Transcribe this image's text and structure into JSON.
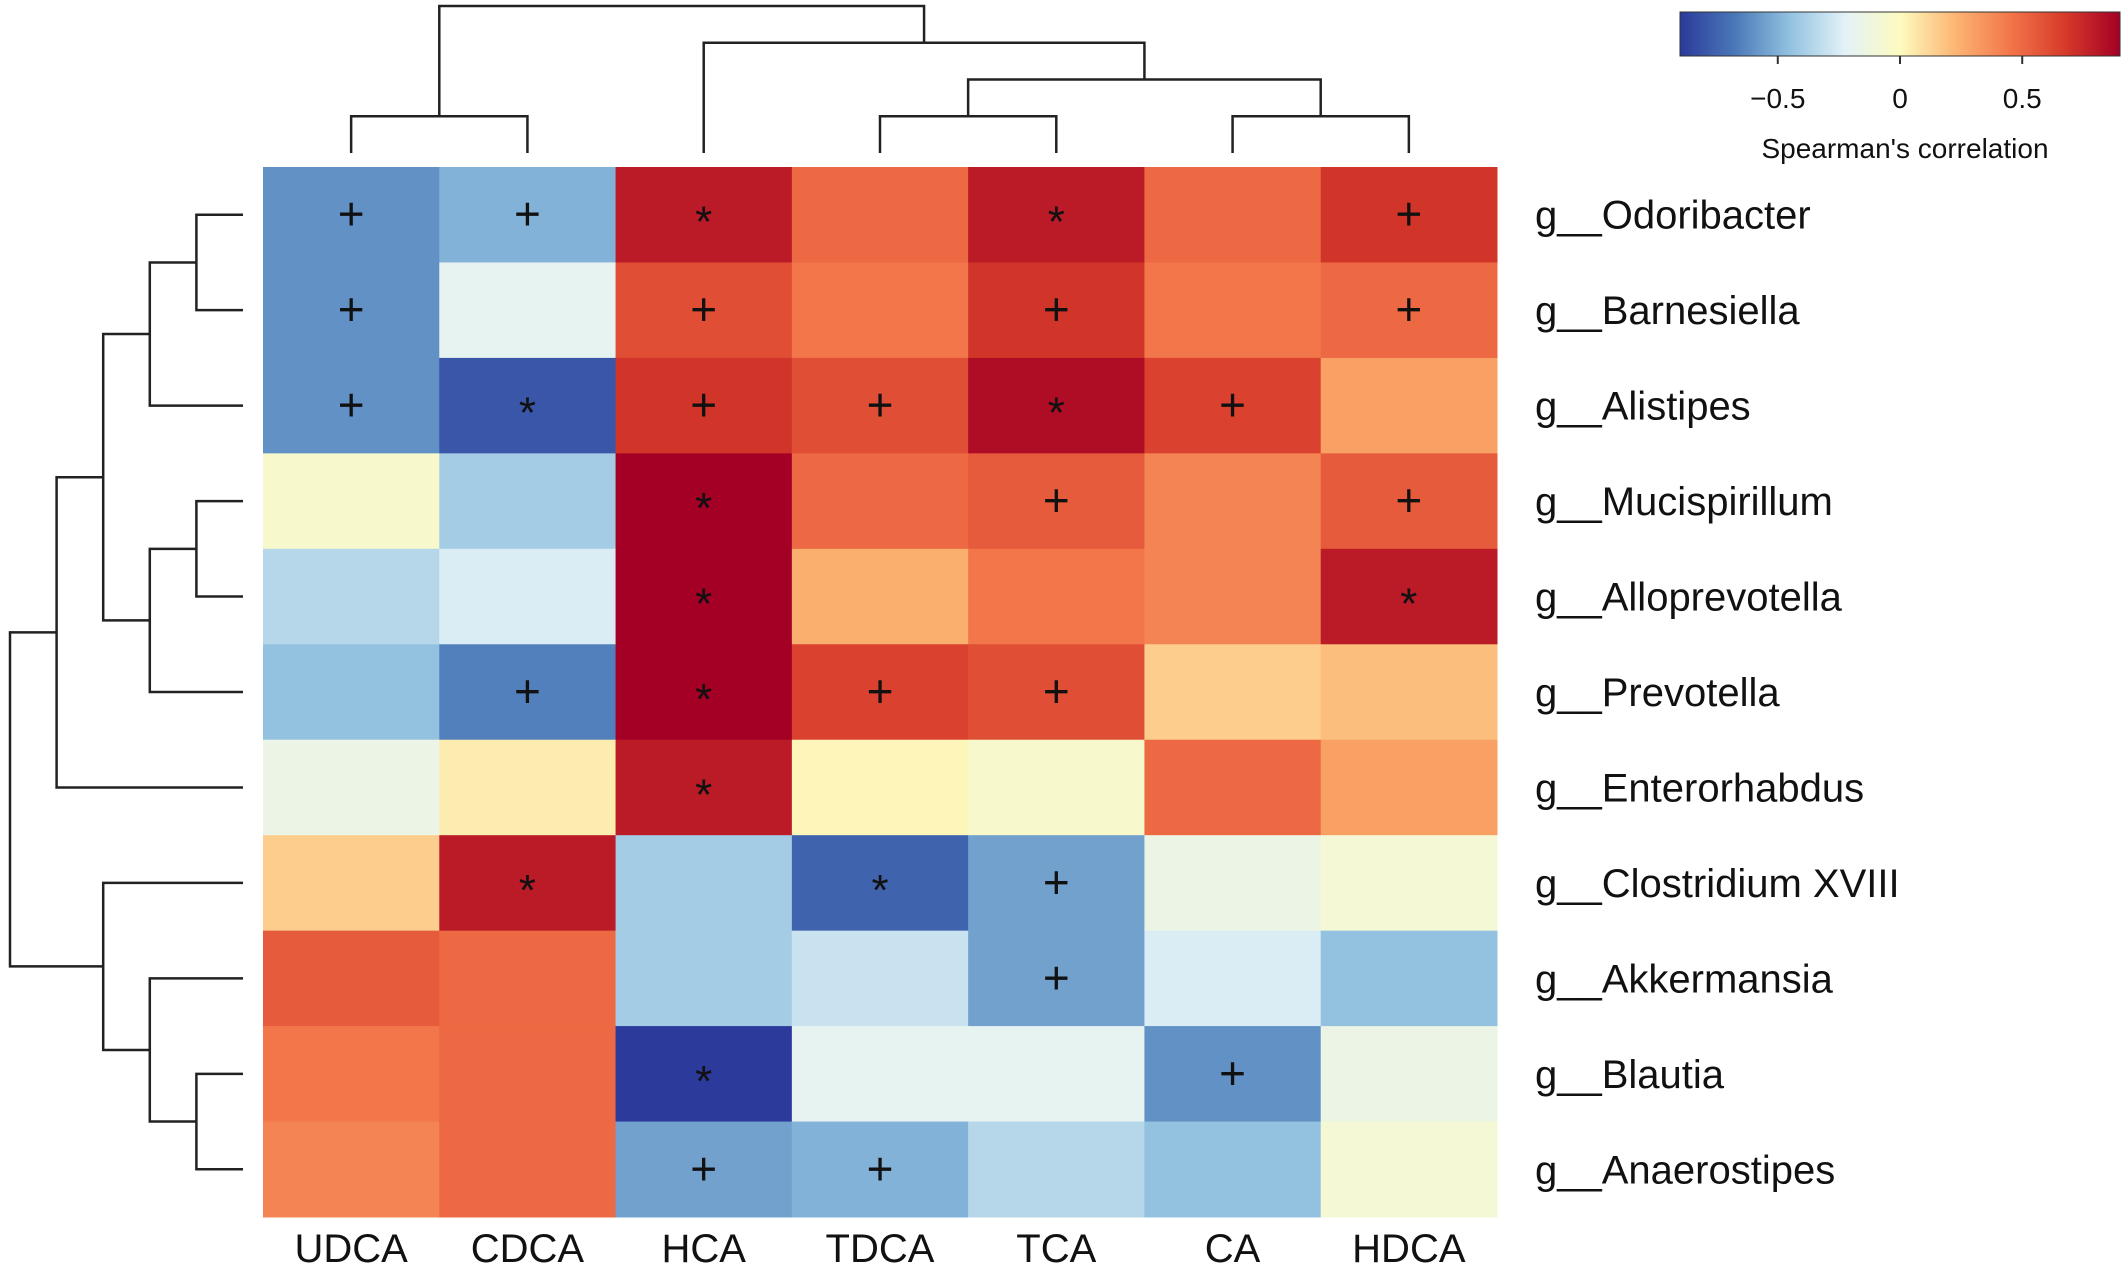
{
  "chart_data": {
    "type": "heatmap",
    "columns": [
      "UDCA",
      "CDCA",
      "HCA",
      "TDCA",
      "TCA",
      "CA",
      "HDCA"
    ],
    "rows": [
      "g__Odoribacter",
      "g__Barnesiella",
      "g__Alistipes",
      "g__Mucispirillum",
      "g__Alloprevotella",
      "g__Prevotella",
      "g__Enterorhabdus",
      "g__Clostridium XVIII",
      "g__Akkermansia",
      "g__Blautia",
      "g__Anaerostipes"
    ],
    "values": [
      [
        -0.6,
        -0.5,
        0.8,
        0.5,
        0.8,
        0.5,
        0.7
      ],
      [
        -0.6,
        -0.2,
        0.6,
        0.45,
        0.7,
        0.45,
        0.5
      ],
      [
        -0.6,
        -0.8,
        0.7,
        0.6,
        0.85,
        0.65,
        0.3
      ],
      [
        -0.05,
        -0.4,
        0.95,
        0.5,
        0.55,
        0.4,
        0.55
      ],
      [
        -0.35,
        -0.25,
        0.9,
        0.25,
        0.45,
        0.4,
        0.8
      ],
      [
        -0.45,
        -0.65,
        0.9,
        0.65,
        0.6,
        0.15,
        0.2
      ],
      [
        -0.15,
        0.05,
        0.8,
        0.02,
        -0.05,
        0.5,
        0.3
      ],
      [
        0.15,
        0.8,
        -0.4,
        -0.75,
        -0.55,
        -0.15,
        -0.08
      ],
      [
        0.55,
        0.5,
        -0.4,
        -0.3,
        -0.55,
        -0.25,
        -0.45
      ],
      [
        0.45,
        0.5,
        -0.95,
        -0.2,
        -0.2,
        -0.6,
        -0.15
      ],
      [
        0.4,
        0.5,
        -0.55,
        -0.5,
        -0.35,
        -0.45,
        -0.08
      ]
    ],
    "marks": [
      [
        "+",
        "+",
        "*",
        "",
        "*",
        "",
        "+"
      ],
      [
        "+",
        "",
        "+",
        "",
        "+",
        "",
        "+"
      ],
      [
        "+",
        "*",
        "+",
        "+",
        "*",
        "+",
        ""
      ],
      [
        "",
        "",
        "*",
        "",
        "+",
        "",
        "+"
      ],
      [
        "",
        "",
        "*",
        "",
        "",
        "",
        "*"
      ],
      [
        "",
        "+",
        "*",
        "+",
        "+",
        "",
        ""
      ],
      [
        "",
        "",
        "*",
        "",
        "",
        "",
        ""
      ],
      [
        "",
        "*",
        "",
        "*",
        "+",
        "",
        ""
      ],
      [
        "",
        "",
        "",
        "",
        "+",
        "",
        ""
      ],
      [
        "",
        "",
        "*",
        "",
        "",
        "+",
        ""
      ],
      [
        "",
        "",
        "+",
        "+",
        "",
        "",
        ""
      ]
    ],
    "legend": {
      "title": "Spearman's correlation",
      "ticks": [
        "−0.5",
        "0",
        "0.5"
      ],
      "tick_values": [
        -0.5,
        0,
        0.5
      ],
      "range": [
        -0.9,
        0.9
      ],
      "placement": "top-right"
    },
    "colormap": [
      "#2b3a9b",
      "#4a78b8",
      "#92c2e0",
      "#e3f2f7",
      "#fdfbc0",
      "#fcb673",
      "#f2764a",
      "#d73a2a",
      "#a40025"
    ],
    "row_dendrogram": [
      [
        0,
        1,
        "a"
      ],
      [
        "a",
        2,
        "b"
      ],
      [
        3,
        4,
        "c"
      ],
      [
        "c",
        5,
        "d"
      ],
      [
        "b",
        "d",
        "e"
      ],
      [
        "e",
        6,
        "f"
      ],
      [
        9,
        10,
        "g"
      ],
      [
        8,
        "g",
        "h"
      ],
      [
        7,
        "h",
        "i"
      ],
      [
        "f",
        "i",
        "j"
      ]
    ],
    "col_dendrogram": [
      [
        0,
        1,
        "A"
      ],
      [
        3,
        4,
        "B"
      ],
      [
        5,
        6,
        "C"
      ],
      [
        "B",
        "C",
        "D"
      ],
      [
        2,
        "D",
        "E"
      ],
      [
        "A",
        "E",
        "F"
      ]
    ]
  }
}
